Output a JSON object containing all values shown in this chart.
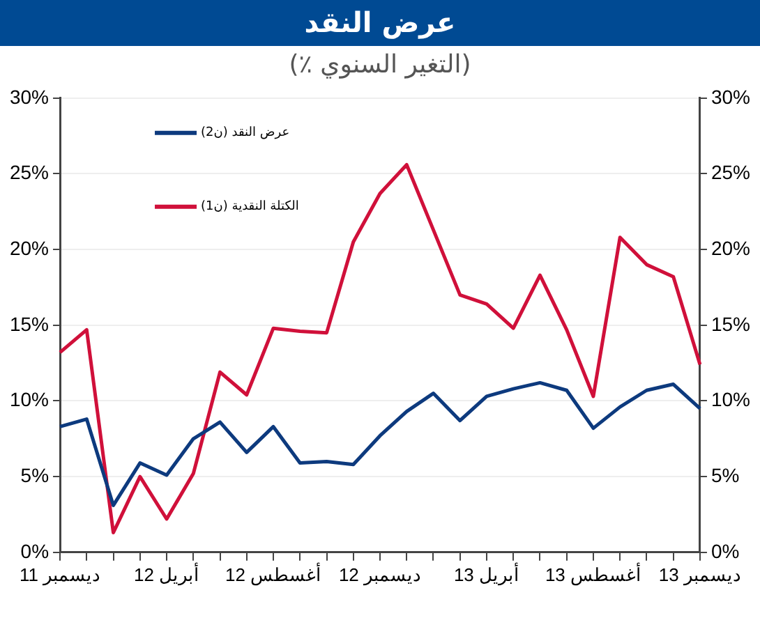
{
  "chart_data": {
    "type": "line",
    "title": "عرض النقد",
    "subtitle": "(التغير السنوي ٪)",
    "categories": [
      "ديسمبر 11",
      null,
      null,
      null,
      "أبريل 12",
      null,
      null,
      null,
      "أغسطس 12",
      null,
      null,
      null,
      "ديسمبر 12",
      null,
      null,
      null,
      "أبريل 13",
      null,
      null,
      null,
      "أغسطس 13",
      null,
      null,
      null,
      "ديسمبر 13"
    ],
    "series": [
      {
        "name": "عرض النقد (ن2)",
        "color": "#0d3a7e",
        "values": [
          8.3,
          8.8,
          3.1,
          5.9,
          5.1,
          7.5,
          8.6,
          6.6,
          8.3,
          5.9,
          6.0,
          5.8,
          7.7,
          9.3,
          10.5,
          8.7,
          10.3,
          10.8,
          11.2,
          10.7,
          8.2,
          9.6,
          10.7,
          11.1,
          9.5
        ]
      },
      {
        "name": "الكتلة النقدية (ن1)",
        "color": "#d0103a",
        "values": [
          13.2,
          14.7,
          1.3,
          5.0,
          2.2,
          5.2,
          11.9,
          10.4,
          14.8,
          14.6,
          14.5,
          20.5,
          23.7,
          25.6,
          21.3,
          17.0,
          16.4,
          14.8,
          18.3,
          14.7,
          10.3,
          20.8,
          19.0,
          18.2,
          12.4
        ]
      }
    ],
    "ylim": [
      0,
      30
    ],
    "yticks": [
      {
        "value": 0,
        "label": "0%"
      },
      {
        "value": 5,
        "label": "5%"
      },
      {
        "value": 10,
        "label": "10%"
      },
      {
        "value": 15,
        "label": "15%"
      },
      {
        "value": 20,
        "label": "20%"
      },
      {
        "value": 25,
        "label": "25%"
      },
      {
        "value": 30,
        "label": "30%"
      }
    ],
    "y2lim": [
      0,
      30
    ],
    "y2ticks": [
      {
        "value": 0,
        "label": "0%"
      },
      {
        "value": 5,
        "label": "5%"
      },
      {
        "value": 10,
        "label": "10%"
      },
      {
        "value": 15,
        "label": "15%"
      },
      {
        "value": 20,
        "label": "20%"
      },
      {
        "value": 25,
        "label": "25%"
      },
      {
        "value": 30,
        "label": "30%"
      }
    ],
    "grid": "y",
    "legend": "top left",
    "marker": "none",
    "line_style": "solid"
  }
}
